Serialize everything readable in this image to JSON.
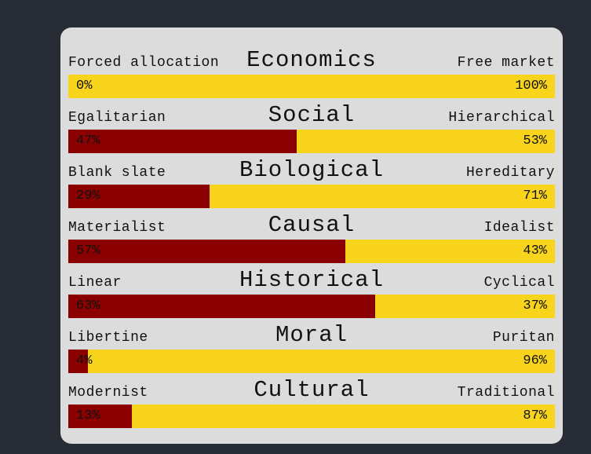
{
  "colors": {
    "background": "#282c34",
    "card": "#dcdcdc",
    "left_bar": "#8b0000",
    "right_bar": "#f8d41c"
  },
  "axes": [
    {
      "title": "Economics",
      "left_label": "Forced allocation",
      "right_label": "Free market",
      "left_pct": "0%",
      "right_pct": "100%",
      "left_value": 0
    },
    {
      "title": "Social",
      "left_label": "Egalitarian",
      "right_label": "Hierarchical",
      "left_pct": "47%",
      "right_pct": "53%",
      "left_value": 47
    },
    {
      "title": "Biological",
      "left_label": "Blank slate",
      "right_label": "Hereditary",
      "left_pct": "29%",
      "right_pct": "71%",
      "left_value": 29
    },
    {
      "title": "Causal",
      "left_label": "Materialist",
      "right_label": "Idealist",
      "left_pct": "57%",
      "right_pct": "43%",
      "left_value": 57
    },
    {
      "title": "Historical",
      "left_label": "Linear",
      "right_label": "Cyclical",
      "left_pct": "63%",
      "right_pct": "37%",
      "left_value": 63
    },
    {
      "title": "Moral",
      "left_label": "Libertine",
      "right_label": "Puritan",
      "left_pct": "4%",
      "right_pct": "96%",
      "left_value": 4
    },
    {
      "title": "Cultural",
      "left_label": "Modernist",
      "right_label": "Traditional",
      "left_pct": "13%",
      "right_pct": "87%",
      "left_value": 13
    }
  ]
}
